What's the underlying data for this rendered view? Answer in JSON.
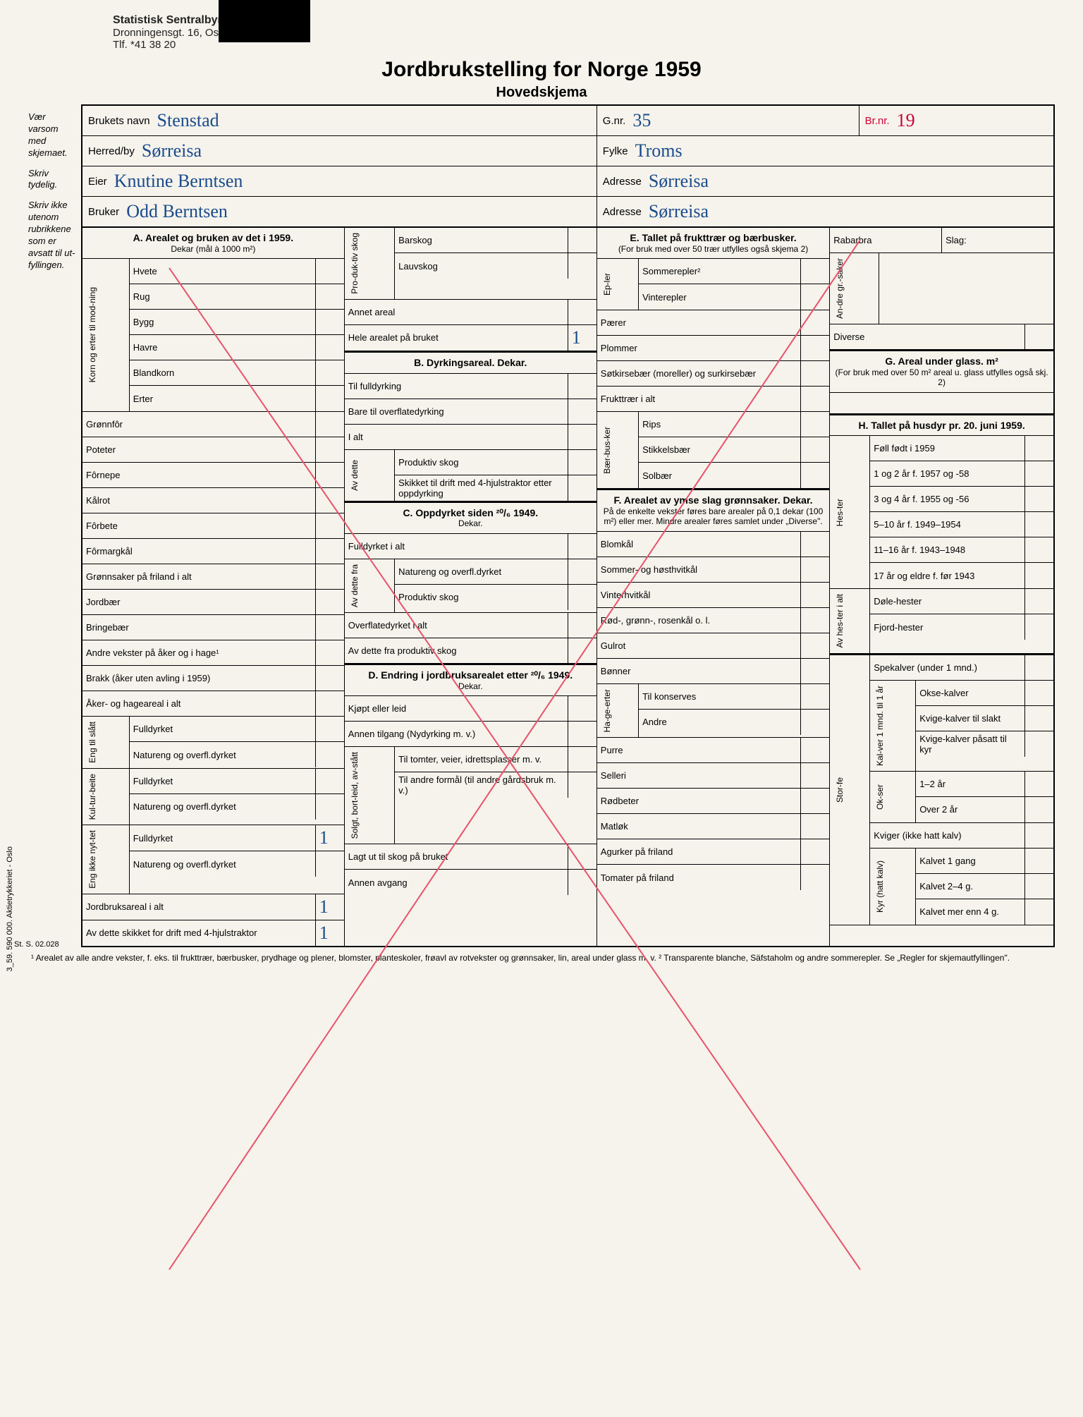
{
  "letterhead": {
    "org": "Statistisk Sentralbyrå",
    "addr": "Dronningensgt. 16, Oslo",
    "phone": "Tlf. *41 38 20"
  },
  "title": "Jordbrukstelling for Norge 1959",
  "subtitle": "Hovedskjema",
  "margin_notes": [
    "Vær varsom med skjemaet.",
    "Skriv tydelig.",
    "Skriv ikke utenom rubrikkene som er avsatt til ut-fyllingen."
  ],
  "header": {
    "brukets_navn_lbl": "Brukets navn",
    "brukets_navn": "Stenstad",
    "gnr_lbl": "G.nr.",
    "gnr": "35",
    "brnr_lbl": "Br.nr.",
    "brnr": "19",
    "herred_lbl": "Herred/by",
    "herred": "Sørreisa",
    "fylke_lbl": "Fylke",
    "fylke": "Troms",
    "eier_lbl": "Eier",
    "eier": "Knutine Berntsen",
    "adresse_lbl": "Adresse",
    "adresse1": "Sørreisa",
    "bruker_lbl": "Bruker",
    "bruker": "Odd Berntsen",
    "adresse2": "Sørreisa"
  },
  "secA": {
    "title": "A. Arealet og bruken av det i 1959.",
    "sub": "Dekar (mål à 1000 m²)",
    "korn_lbl": "Korn og erter til mod-ning",
    "rows1": [
      "Hvete",
      "Rug",
      "Bygg",
      "Havre",
      "Blandkorn",
      "Erter"
    ],
    "rows2": [
      "Grønnfôr",
      "Poteter",
      "Fôrnepe",
      "Kålrot",
      "Fôrbete",
      "Fôrmargkål",
      "Grønnsaker på friland i alt",
      "Jordbær",
      "Bringebær",
      "Andre vekster på åker og i hage¹",
      "Brakk (åker uten avling i 1959)",
      "Åker- og hageareal i alt"
    ],
    "eng_til_slatt": "Eng til slått",
    "eng_rows": [
      "Fulldyrket",
      "Natureng og overfl.dyrket"
    ],
    "kulturbeite": "Kul-tur-beite",
    "kb_rows": [
      "Fulldyrket",
      "Natureng og overfl.dyrket"
    ],
    "eng_ikke": "Eng ikke nyt-tet",
    "ei_rows": [
      "Fulldyrket",
      "Natureng og overfl.dyrket"
    ],
    "bottom": [
      "Jordbruksareal i alt",
      "Av dette skikket for drift med 4-hjulstraktor"
    ],
    "hw_vals": {
      "ei_full": "1",
      "ja_ialt": "1",
      "av_dette": "1"
    }
  },
  "secB_top": {
    "prod_skog": "Pro-duk-tiv skog",
    "barskog": "Barskog",
    "lauvskog": "Lauvskog",
    "annet": "Annet areal",
    "hele": "Hele arealet på bruket",
    "hele_val": "1"
  },
  "secB": {
    "title": "B. Dyrkingsareal. Dekar.",
    "rows": [
      "Til fulldyrking",
      "Bare til overflatedyrking",
      "I alt"
    ],
    "av_dette": "Av dette",
    "av_rows": [
      "Produktiv skog",
      "Skikket til drift med 4-hjulstraktor etter oppdyrking"
    ]
  },
  "secC": {
    "title": "C. Oppdyrket siden ²⁰/₆ 1949.",
    "sub": "Dekar.",
    "rows": [
      "Fulldyrket i alt"
    ],
    "av_fra": "Av dette fra",
    "av_rows": [
      "Natureng og overfl.dyrket",
      "Produktiv skog"
    ],
    "rows2": [
      "Overflatedyrket i alt",
      "Av dette fra produktiv skog"
    ]
  },
  "secD": {
    "title": "D. Endring i jordbruksarealet etter ²⁰/₆ 1949.",
    "sub": "Dekar.",
    "rows": [
      "Kjøpt eller leid",
      "Annen tilgang (Nydyrking m. v.)"
    ],
    "solgt": "Solgt, bort-leid, av-stått",
    "solgt_rows": [
      "Til tomter, veier, idrettsplasser m. v.",
      "Til andre formål (til andre gårdsbruk m. v.)"
    ],
    "rows2": [
      "Lagt ut til skog på bruket",
      "Annen avgang"
    ]
  },
  "secE": {
    "title": "E. Tallet på frukttrær og bærbusker.",
    "sub": "(For bruk med over 50 trær utfylles også skjema 2)",
    "epler": "Ep-ler",
    "ep_rows": [
      "Sommerepler²",
      "Vinterepler"
    ],
    "rows": [
      "Pærer",
      "Plommer",
      "Søtkirsebær (moreller) og surkirsebær",
      "Frukttrær i alt"
    ],
    "baer": "Bær-bus-ker",
    "baer_rows": [
      "Rips",
      "Stikkelsbær",
      "Solbær"
    ]
  },
  "secF": {
    "title": "F. Arealet av ymse slag grønnsaker. Dekar.",
    "sub": "På de enkelte vekster føres bare arealer på 0,1 dekar (100 m²) eller mer. Mindre arealer føres samlet under „Diverse\".",
    "rows": [
      "Blomkål",
      "Sommer- og høsthvitkål",
      "Vinterhvitkål",
      "Rød-, grønn-, rosenkål o. l.",
      "Gulrot",
      "Bønner"
    ],
    "hage": "Ha-ge-erter",
    "hage_rows": [
      "Til konserves",
      "Andre"
    ],
    "rows2": [
      "Purre",
      "Selleri",
      "Rødbeter",
      "Matløk",
      "Agurker på friland",
      "Tomater på friland"
    ]
  },
  "secG_top": {
    "rabarbra": "Rabarbra",
    "slag": "Slag:",
    "andre": "An-dre gr.-saker",
    "diverse": "Diverse"
  },
  "secG": {
    "title": "G. Areal under glass. m²",
    "sub": "(For bruk med over 50 m² areal u. glass utfylles også skj. 2)"
  },
  "secH": {
    "title": "H. Tallet på husdyr pr. 20. juni 1959.",
    "hester": "Hes-ter",
    "h_rows": [
      "Føll født i 1959",
      "1 og 2 år f. 1957 og -58",
      "3 og 4 år f. 1955 og -56",
      "5–10 år f. 1949–1954",
      "11–16 år f. 1943–1948",
      "17 år og eldre f. før 1943"
    ],
    "av_hes": "Av hes-ter i alt",
    "av_h_rows": [
      "Døle-hester",
      "Fjord-hester"
    ],
    "storfe": "Stor-fe",
    "sf_rows": [
      "Spekalver (under 1 mnd.)"
    ],
    "kalver": "Kal-ver 1 mnd. til 1 år",
    "k_rows": [
      "Okse-kalver",
      "Kvige-kalver til slakt",
      "Kvige-kalver påsatt til kyr"
    ],
    "okser": "Ok-ser",
    "ok_rows": [
      "1–2 år",
      "Over 2 år"
    ],
    "sf_rows2": [
      "Kviger (ikke hatt kalv)"
    ],
    "kyr": "Kyr (hatt kalv)",
    "kyr_rows": [
      "Kalvet 1 gang",
      "Kalvet 2–4 g.",
      "Kalvet mer enn 4 g."
    ]
  },
  "footnote": "¹ Arealet av alle andre vekster, f. eks. til frukttrær, bærbusker, prydhage og plener, blomster, planteskoler, frøavl av rotvekster og grønnsaker, lin, areal under glass m. v. ² Transparente blanche, Säfstaholm og andre sommerepler. Se „Regler for skjemautfyllingen\".",
  "side_print": "3_59. 590 000. Aktietrykkeriet - Oslo",
  "stamp": "St. S. 02.028",
  "colors": {
    "ink": "#1a4b8c",
    "redline": "#e8536b",
    "paper": "#f5f3eb",
    "text": "#111"
  }
}
